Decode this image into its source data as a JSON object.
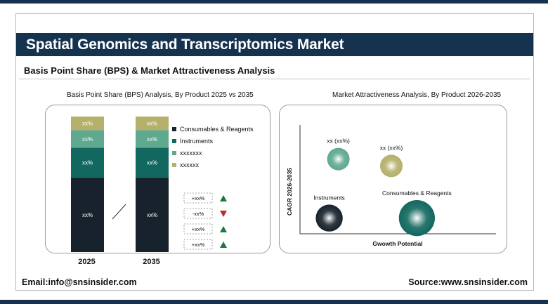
{
  "header": {
    "title": "Spatial Genomics and Transcriptomics Market",
    "subtitle": "Basis Point Share (BPS) & Market Attractiveness Analysis"
  },
  "footer": {
    "email": "Email:info@snsinsider.com",
    "source": "Source:www.snsinsider.com"
  },
  "colors": {
    "navy": "#15324f",
    "consumables": "#17222c",
    "instruments": "#12685f",
    "segment3": "#5fa98f",
    "segment4": "#b5b06a",
    "up_arrow": "#1a7a3c",
    "down_arrow": "#b23030"
  },
  "chart_data": [
    {
      "type": "bar",
      "stacked": true,
      "title": "Basis Point Share (BPS) Analysis, By Product 2025 vs 2035",
      "categories": [
        "2025",
        "2035"
      ],
      "segment_labels": [
        "xx%",
        "xx%",
        "xx%",
        "xx%"
      ],
      "series": [
        {
          "name": "Consumables & Reagents",
          "values": [
            55,
            55
          ],
          "color": "#17222c"
        },
        {
          "name": "Instruments",
          "values": [
            22,
            22
          ],
          "color": "#12685f"
        },
        {
          "name": "xxxxxxx",
          "values": [
            13,
            13
          ],
          "color": "#5fa98f"
        },
        {
          "name": "xxxxxx",
          "values": [
            10,
            10
          ],
          "color": "#b5b06a"
        }
      ],
      "ylim": [
        0,
        100
      ],
      "legend_position": "right",
      "changes": [
        {
          "label": "+xx%",
          "direction": "up"
        },
        {
          "label": "-xx%",
          "direction": "down"
        },
        {
          "label": "+xx%",
          "direction": "up"
        },
        {
          "label": "+xx%",
          "direction": "up"
        }
      ]
    },
    {
      "type": "scatter",
      "title": "Market Attractiveness Analysis, By Product 2026-2035",
      "xlabel": "Gwowth Potential",
      "ylabel": "CAGR 2026-2035",
      "xlim": [
        0,
        10
      ],
      "ylim": [
        0,
        10
      ],
      "points": [
        {
          "label": "xx (xx%)",
          "x": 2.1,
          "y": 7.6,
          "size": 1.0,
          "color": "#5fa98f"
        },
        {
          "label": "xx (xx%)",
          "x": 5.0,
          "y": 6.9,
          "size": 1.0,
          "color": "#b5b06a"
        },
        {
          "label": "Instruments",
          "x": 1.6,
          "y": 1.6,
          "size": 1.2,
          "color": "#17222c"
        },
        {
          "label": "Consumables & Reagents",
          "x": 6.4,
          "y": 1.6,
          "size": 1.6,
          "color": "#12685f"
        }
      ]
    }
  ]
}
